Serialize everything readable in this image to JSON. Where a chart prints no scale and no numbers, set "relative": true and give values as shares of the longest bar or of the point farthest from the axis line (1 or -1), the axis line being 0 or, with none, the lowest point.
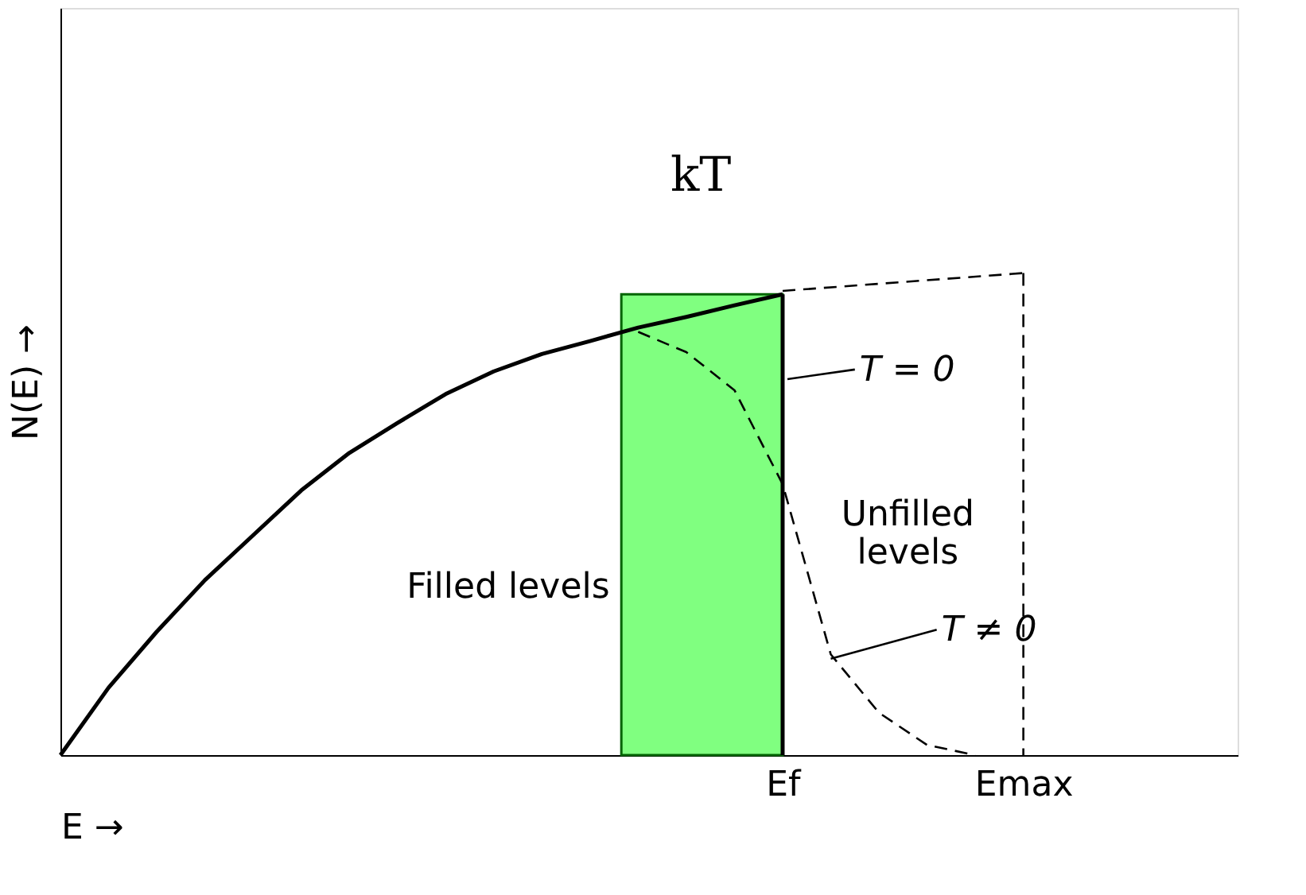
{
  "chart_data": {
    "type": "line",
    "relative": true,
    "xlabel": "E →",
    "ylabel": "N(E) →",
    "grid": false,
    "categories": [
      null,
      null,
      null,
      null,
      null,
      null,
      null,
      null,
      null,
      null,
      null,
      null,
      null,
      null,
      null,
      "Ef",
      null,
      null,
      null,
      null,
      "Emax",
      null,
      null,
      null,
      null
    ],
    "series": [
      {
        "color": "#000000",
        "line_style": "solid",
        "values": [
          0,
          0.14,
          0.256,
          0.363,
          0.456,
          0.549,
          0.627,
          0.689,
          0.749,
          0.796,
          0.832,
          0.859,
          0.887,
          0.909,
          0.933,
          0.956,
          null,
          null,
          null,
          null,
          null,
          null,
          null,
          null,
          null
        ]
      },
      {
        "color": "#000000",
        "line_style": "dashed",
        "values": [
          null,
          null,
          null,
          null,
          null,
          null,
          null,
          null,
          null,
          null,
          null,
          null,
          0.878,
          0.836,
          0.757,
          0.562,
          0.209,
          0.088,
          0.021,
          0,
          null,
          null,
          null,
          null,
          null
        ]
      },
      {
        "color": "#000000",
        "line_style": "dashed",
        "values": [
          null,
          null,
          null,
          null,
          null,
          null,
          null,
          null,
          null,
          null,
          null,
          null,
          null,
          null,
          null,
          0.963,
          null,
          null,
          null,
          null,
          1,
          null,
          null,
          null,
          null
        ]
      }
    ],
    "annotations": [
      "Filled levels",
      "Unfilled levels",
      "T = 0",
      "T ≠ 0",
      "kT"
    ]
  }
}
